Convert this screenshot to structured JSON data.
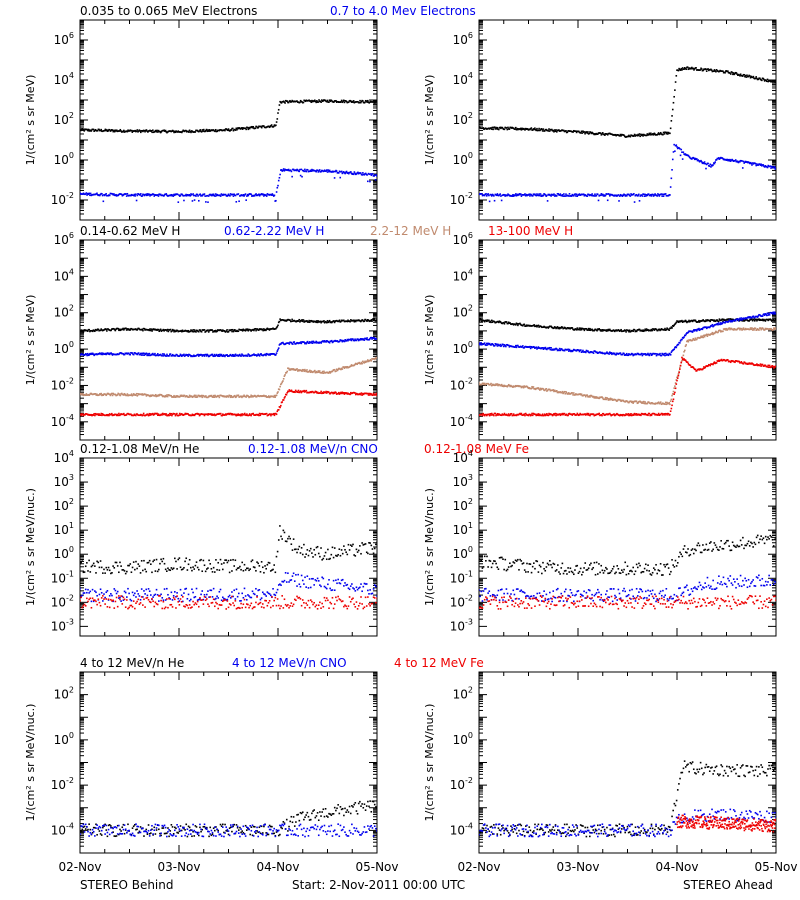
{
  "colors": {
    "black": "#000000",
    "blue": "#0000ee",
    "tan": "#c08a6e",
    "red": "#ee0000"
  },
  "footer": {
    "left": "STEREO Behind",
    "center": "Start:  2-Nov-2011 00:00 UTC",
    "right": "STEREO Ahead"
  },
  "chart_data": [
    {
      "type": "scatter",
      "panel": "electrons-behind",
      "legend": [
        {
          "text": "0.035 to 0.065 MeV Electrons",
          "color": "black"
        },
        {
          "text": "0.7 to 4.0 Mev Electrons",
          "color": "blue"
        }
      ],
      "ylabel": "1/(cm² s sr MeV)",
      "yscale": "log",
      "ylim_exp": [
        -3,
        7
      ],
      "ytick_exps": [
        -2,
        0,
        2,
        4,
        6
      ],
      "xlim": [
        0,
        3
      ],
      "x_tick_labels": [
        "02-Nov",
        "03-Nov",
        "04-Nov",
        "05-Nov"
      ],
      "series": [
        {
          "color": "black",
          "log_y": [
            [
              0,
              1.5
            ],
            [
              0.5,
              1.45
            ],
            [
              1,
              1.42
            ],
            [
              1.5,
              1.5
            ],
            [
              1.98,
              1.72
            ],
            [
              2.02,
              2.9
            ],
            [
              2.5,
              2.95
            ],
            [
              3,
              2.9
            ]
          ]
        },
        {
          "color": "blue",
          "log_y": [
            [
              0,
              -1.7
            ],
            [
              0.5,
              -1.75
            ],
            [
              1,
              -1.75
            ],
            [
              1.5,
              -1.75
            ],
            [
              1.98,
              -1.75
            ],
            [
              2.03,
              -0.5
            ],
            [
              2.5,
              -0.55
            ],
            [
              3,
              -0.75
            ]
          ]
        }
      ]
    },
    {
      "type": "scatter",
      "panel": "electrons-ahead",
      "legend": [],
      "ylabel": "1/(cm² s sr MeV)",
      "yscale": "log",
      "ylim_exp": [
        -3,
        7
      ],
      "ytick_exps": [
        -2,
        0,
        2,
        4,
        6
      ],
      "xlim": [
        0,
        3
      ],
      "x_tick_labels": [
        "02-Nov",
        "03-Nov",
        "04-Nov",
        "05-Nov"
      ],
      "series": [
        {
          "color": "black",
          "log_y": [
            [
              0,
              1.6
            ],
            [
              0.5,
              1.55
            ],
            [
              1,
              1.4
            ],
            [
              1.5,
              1.2
            ],
            [
              1.93,
              1.35
            ],
            [
              2.0,
              4.5
            ],
            [
              2.1,
              4.6
            ],
            [
              2.5,
              4.4
            ],
            [
              3,
              3.9
            ]
          ]
        },
        {
          "color": "blue",
          "log_y": [
            [
              0,
              -1.75
            ],
            [
              0.5,
              -1.75
            ],
            [
              1,
              -1.75
            ],
            [
              1.5,
              -1.75
            ],
            [
              1.93,
              -1.75
            ],
            [
              1.97,
              0.8
            ],
            [
              2.1,
              0.2
            ],
            [
              2.35,
              -0.3
            ],
            [
              2.42,
              0.1
            ],
            [
              3,
              -0.4
            ]
          ]
        }
      ]
    },
    {
      "type": "scatter",
      "panel": "protons-behind",
      "legend": [
        {
          "text": "0.14-0.62 MeV H",
          "color": "black"
        },
        {
          "text": "0.62-2.22 MeV H",
          "color": "blue"
        },
        {
          "text": "2.2-12 MeV H",
          "color": "tan"
        },
        {
          "text": "13-100 MeV H",
          "color": "red"
        }
      ],
      "ylabel": "1/(cm² s sr MeV)",
      "yscale": "log",
      "ylim_exp": [
        -5,
        6
      ],
      "ytick_exps": [
        -4,
        -2,
        0,
        2,
        4,
        6
      ],
      "xlim": [
        0,
        3
      ],
      "x_tick_labels": [
        "02-Nov",
        "03-Nov",
        "04-Nov",
        "05-Nov"
      ],
      "series": [
        {
          "color": "black",
          "log_y": [
            [
              0,
              1.0
            ],
            [
              0.5,
              1.1
            ],
            [
              1,
              1.0
            ],
            [
              1.5,
              1.0
            ],
            [
              1.98,
              1.1
            ],
            [
              2.02,
              1.6
            ],
            [
              2.5,
              1.5
            ],
            [
              3,
              1.6
            ]
          ]
        },
        {
          "color": "blue",
          "log_y": [
            [
              0,
              -0.3
            ],
            [
              0.5,
              -0.25
            ],
            [
              1,
              -0.35
            ],
            [
              1.5,
              -0.35
            ],
            [
              1.98,
              -0.3
            ],
            [
              2.02,
              0.3
            ],
            [
              2.5,
              0.4
            ],
            [
              3,
              0.6
            ]
          ]
        },
        {
          "color": "tan",
          "log_y": [
            [
              0,
              -2.5
            ],
            [
              0.5,
              -2.5
            ],
            [
              1,
              -2.6
            ],
            [
              1.5,
              -2.6
            ],
            [
              1.98,
              -2.6
            ],
            [
              2.1,
              -1.1
            ],
            [
              2.5,
              -1.3
            ],
            [
              3,
              -0.5
            ]
          ]
        },
        {
          "color": "red",
          "log_y": [
            [
              0,
              -3.6
            ],
            [
              0.5,
              -3.6
            ],
            [
              1,
              -3.6
            ],
            [
              1.5,
              -3.6
            ],
            [
              1.98,
              -3.6
            ],
            [
              2.1,
              -2.3
            ],
            [
              2.5,
              -2.4
            ],
            [
              3,
              -2.5
            ]
          ]
        }
      ]
    },
    {
      "type": "scatter",
      "panel": "protons-ahead",
      "legend": [],
      "ylabel": "1/(cm² s sr MeV)",
      "yscale": "log",
      "ylim_exp": [
        -5,
        6
      ],
      "ytick_exps": [
        -4,
        -2,
        0,
        2,
        4,
        6
      ],
      "xlim": [
        0,
        3
      ],
      "x_tick_labels": [
        "02-Nov",
        "03-Nov",
        "04-Nov",
        "05-Nov"
      ],
      "series": [
        {
          "color": "black",
          "log_y": [
            [
              0,
              1.6
            ],
            [
              0.5,
              1.3
            ],
            [
              1,
              1.1
            ],
            [
              1.5,
              1.0
            ],
            [
              1.93,
              1.1
            ],
            [
              2.0,
              1.5
            ],
            [
              2.5,
              1.6
            ],
            [
              3,
              1.6
            ]
          ]
        },
        {
          "color": "blue",
          "log_y": [
            [
              0,
              0.3
            ],
            [
              0.5,
              0.1
            ],
            [
              1,
              -0.1
            ],
            [
              1.5,
              -0.3
            ],
            [
              1.93,
              -0.3
            ],
            [
              2.1,
              0.9
            ],
            [
              2.5,
              1.5
            ],
            [
              3,
              2.0
            ]
          ]
        },
        {
          "color": "tan",
          "log_y": [
            [
              0,
              -1.9
            ],
            [
              0.5,
              -2.1
            ],
            [
              1,
              -2.5
            ],
            [
              1.5,
              -2.9
            ],
            [
              1.93,
              -3.0
            ],
            [
              2.1,
              0.4
            ],
            [
              2.5,
              1.1
            ],
            [
              3,
              1.1
            ]
          ]
        },
        {
          "color": "red",
          "log_y": [
            [
              0,
              -3.6
            ],
            [
              0.5,
              -3.6
            ],
            [
              1,
              -3.6
            ],
            [
              1.5,
              -3.6
            ],
            [
              1.93,
              -3.6
            ],
            [
              2.05,
              -0.5
            ],
            [
              2.2,
              -1.2
            ],
            [
              2.45,
              -0.6
            ],
            [
              3,
              -1.0
            ]
          ]
        }
      ]
    },
    {
      "type": "scatter",
      "panel": "low-heavy-behind",
      "legend": [
        {
          "text": "0.12-1.08 MeV/n He",
          "color": "black"
        },
        {
          "text": "0.12-1.08 MeV/n CNO",
          "color": "blue"
        },
        {
          "text": "0.12-1.08 MeV Fe",
          "color": "red"
        }
      ],
      "ylabel": "1/(cm² s sr MeV/nuc.)",
      "yscale": "log",
      "ylim_exp": [
        -3.4,
        4
      ],
      "ytick_exps": [
        -3,
        -2,
        -1,
        0,
        1,
        2,
        3,
        4
      ],
      "xlim": [
        0,
        3
      ],
      "x_tick_labels": [
        "02-Nov",
        "03-Nov",
        "04-Nov",
        "05-Nov"
      ],
      "series": [
        {
          "color": "black",
          "log_y": [
            [
              0,
              -0.5
            ],
            [
              0.5,
              -0.55
            ],
            [
              1,
              -0.4
            ],
            [
              1.5,
              -0.5
            ],
            [
              1.98,
              -0.5
            ],
            [
              2.02,
              1.0
            ],
            [
              2.2,
              0.2
            ],
            [
              2.5,
              0.0
            ],
            [
              3,
              0.3
            ]
          ]
        },
        {
          "color": "blue",
          "log_y": [
            [
              0,
              -1.7
            ],
            [
              1,
              -1.7
            ],
            [
              2,
              -1.65
            ],
            [
              2.05,
              -1.0
            ],
            [
              3,
              -1.5
            ]
          ]
        },
        {
          "color": "red",
          "log_y": [
            [
              0,
              -2.0
            ],
            [
              1,
              -2.0
            ],
            [
              2,
              -2.0
            ],
            [
              3,
              -2.0
            ]
          ]
        }
      ]
    },
    {
      "type": "scatter",
      "panel": "low-heavy-ahead",
      "legend": [],
      "ylabel": "1/(cm² s sr MeV/nuc.)",
      "yscale": "log",
      "ylim_exp": [
        -3.4,
        4
      ],
      "ytick_exps": [
        -3,
        -2,
        -1,
        0,
        1,
        2,
        3,
        4
      ],
      "xlim": [
        0,
        3
      ],
      "x_tick_labels": [
        "02-Nov",
        "03-Nov",
        "04-Nov",
        "05-Nov"
      ],
      "series": [
        {
          "color": "black",
          "log_y": [
            [
              0,
              -0.3
            ],
            [
              0.5,
              -0.5
            ],
            [
              1,
              -0.6
            ],
            [
              1.5,
              -0.6
            ],
            [
              1.93,
              -0.6
            ],
            [
              2.1,
              0.2
            ],
            [
              2.5,
              0.4
            ],
            [
              3,
              0.6
            ]
          ]
        },
        {
          "color": "blue",
          "log_y": [
            [
              0,
              -1.7
            ],
            [
              1,
              -1.7
            ],
            [
              2,
              -1.7
            ],
            [
              2.3,
              -1.2
            ],
            [
              3,
              -1.1
            ]
          ]
        },
        {
          "color": "red",
          "log_y": [
            [
              0,
              -2.0
            ],
            [
              1,
              -2.0
            ],
            [
              2,
              -2.0
            ],
            [
              3,
              -2.0
            ]
          ]
        }
      ]
    },
    {
      "type": "scatter",
      "panel": "high-heavy-behind",
      "legend": [
        {
          "text": "4 to 12 MeV/n He",
          "color": "black"
        },
        {
          "text": "4 to 12 MeV/n CNO",
          "color": "blue"
        },
        {
          "text": "4 to 12 MeV Fe",
          "color": "red"
        }
      ],
      "ylabel": "1/(cm² s sr MeV/nuc.)",
      "yscale": "log",
      "ylim_exp": [
        -5,
        3
      ],
      "ytick_exps": [
        -4,
        -2,
        0,
        2
      ],
      "xlim": [
        0,
        3
      ],
      "x_tick_labels": [
        "02-Nov",
        "03-Nov",
        "04-Nov",
        "05-Nov"
      ],
      "series": [
        {
          "color": "black",
          "log_y": [
            [
              0,
              -4.0
            ],
            [
              1,
              -4.0
            ],
            [
              2,
              -4.0
            ],
            [
              2.2,
              -3.5
            ],
            [
              2.5,
              -3.2
            ],
            [
              3,
              -2.9
            ]
          ]
        },
        {
          "color": "blue",
          "log_y": [
            [
              0,
              -4.0
            ],
            [
              1,
              -4.0
            ],
            [
              3,
              -4.0
            ]
          ]
        }
      ]
    },
    {
      "type": "scatter",
      "panel": "high-heavy-ahead",
      "legend": [],
      "ylabel": "1/(cm² s sr MeV/nuc.)",
      "yscale": "log",
      "ylim_exp": [
        -5,
        3
      ],
      "ytick_exps": [
        -4,
        -2,
        0,
        2
      ],
      "xlim": [
        0,
        3
      ],
      "x_tick_labels": [
        "02-Nov",
        "03-Nov",
        "04-Nov",
        "05-Nov"
      ],
      "series": [
        {
          "color": "black",
          "log_y": [
            [
              0,
              -4.0
            ],
            [
              1,
              -4.0
            ],
            [
              1.93,
              -4.0
            ],
            [
              2.05,
              -1.2
            ],
            [
              2.3,
              -1.3
            ],
            [
              3,
              -1.4
            ]
          ]
        },
        {
          "color": "blue",
          "log_y": [
            [
              0,
              -4.0
            ],
            [
              1.93,
              -4.0
            ],
            [
              2.05,
              -3.4
            ],
            [
              2.5,
              -3.3
            ],
            [
              3,
              -3.4
            ]
          ]
        },
        {
          "color": "red",
          "log_y": [
            [
              2.0,
              -3.6
            ],
            [
              2.5,
              -3.7
            ],
            [
              3,
              -3.8
            ]
          ]
        }
      ]
    }
  ]
}
